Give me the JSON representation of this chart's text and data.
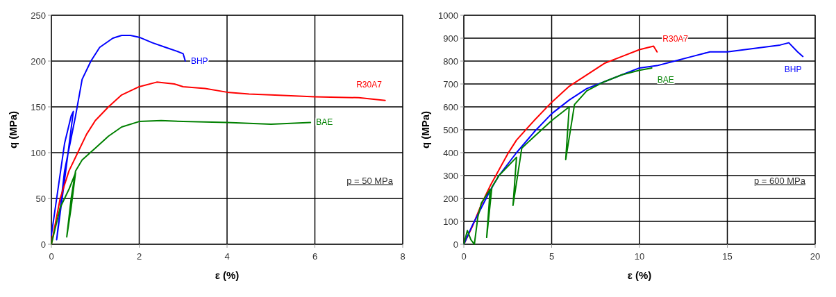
{
  "chart_data": [
    {
      "type": "line",
      "xlabel": "ε (%)",
      "ylabel": "q (MPa)",
      "xlim": [
        0,
        8
      ],
      "xticks": [
        0,
        2,
        4,
        6,
        8
      ],
      "ylim": [
        0,
        250
      ],
      "yticks": [
        0,
        50,
        100,
        150,
        200,
        250
      ],
      "grid": true,
      "annotations": [
        "p = 50 MPa"
      ],
      "series": [
        {
          "name": "BHP",
          "color": "#0000ff",
          "x": [
            0,
            0.15,
            0.3,
            0.45,
            0.5,
            0.3,
            0.12,
            0.3,
            0.55,
            0.7,
            0.9,
            1.1,
            1.4,
            1.6,
            1.8,
            2.0,
            2.3,
            2.6,
            2.9,
            3.0,
            3.05
          ],
          "values": [
            10,
            60,
            110,
            140,
            145,
            70,
            5,
            80,
            140,
            180,
            200,
            215,
            225,
            228,
            228,
            226,
            220,
            215,
            210,
            208,
            200
          ]
        },
        {
          "name": "R30A7",
          "color": "#ff0000",
          "x": [
            0,
            0.2,
            0.4,
            0.6,
            0.8,
            1.0,
            1.3,
            1.6,
            2.0,
            2.4,
            2.8,
            3.0,
            3.5,
            4.0,
            4.5,
            5,
            6,
            7,
            7.6
          ],
          "values": [
            0,
            50,
            80,
            100,
            120,
            135,
            150,
            163,
            172,
            177,
            175,
            172,
            170,
            166,
            164,
            163,
            161,
            160,
            157
          ]
        },
        {
          "name": "BAE",
          "color": "#008000",
          "x": [
            0,
            0.2,
            0.4,
            0.55,
            0.45,
            0.35,
            0.45,
            0.55,
            0.7,
            1.0,
            1.3,
            1.6,
            2.0,
            2.5,
            3,
            4,
            5,
            5.9
          ],
          "values": [
            0,
            40,
            60,
            78,
            40,
            8,
            50,
            80,
            92,
            105,
            118,
            128,
            134,
            135,
            134,
            133,
            131,
            133
          ]
        }
      ]
    },
    {
      "type": "line",
      "xlabel": "ε (%)",
      "ylabel": "q (MPa)",
      "xlim": [
        0,
        20
      ],
      "xticks": [
        0,
        5,
        10,
        15,
        20
      ],
      "ylim": [
        0,
        1000
      ],
      "yticks": [
        0,
        100,
        200,
        300,
        400,
        500,
        600,
        700,
        800,
        900,
        1000
      ],
      "grid": true,
      "annotations": [
        "p = 600 MPa"
      ],
      "series": [
        {
          "name": "R30A7",
          "color": "#ff0000",
          "x": [
            0,
            0.5,
            1,
            1.5,
            2,
            2.5,
            3,
            4,
            5,
            6,
            7,
            8,
            9,
            10,
            10.8,
            11
          ],
          "values": [
            0,
            80,
            175,
            255,
            325,
            395,
            455,
            540,
            620,
            690,
            740,
            790,
            820,
            850,
            865,
            840
          ]
        },
        {
          "name": "BHP",
          "color": "#0000ff",
          "x": [
            0,
            0.5,
            1,
            1.5,
            2,
            3,
            4,
            5,
            6,
            7,
            8,
            9,
            10,
            11,
            12,
            13,
            14,
            15,
            16,
            17,
            18,
            18.5,
            19,
            19.3
          ],
          "values": [
            0,
            85,
            160,
            235,
            300,
            400,
            490,
            570,
            630,
            680,
            710,
            740,
            770,
            780,
            800,
            820,
            840,
            840,
            850,
            860,
            870,
            880,
            840,
            820
          ]
        },
        {
          "name": "BAE",
          "color": "#008000",
          "x": [
            0,
            0.2,
            0.4,
            0.6,
            0.8,
            1.0,
            1.5,
            1.3,
            1.6,
            2,
            3,
            2.8,
            3.3,
            4,
            5,
            6,
            5.8,
            6.3,
            7,
            8,
            9,
            10,
            10.7
          ],
          "values": [
            0,
            60,
            20,
            0,
            120,
            180,
            240,
            30,
            250,
            300,
            380,
            170,
            420,
            470,
            540,
            600,
            370,
            610,
            670,
            710,
            740,
            760,
            770
          ]
        }
      ]
    }
  ]
}
